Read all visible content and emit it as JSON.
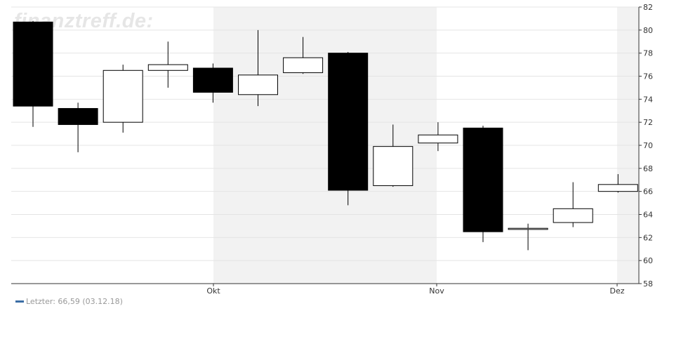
{
  "watermark": "finanztreff.de:",
  "legend": {
    "label": "Letzter: 66,59 (03.12.18)",
    "color": "#3b6ea5"
  },
  "chart_data": {
    "type": "candlestick",
    "title": "",
    "xlabel": "",
    "ylabel": "",
    "ylim": [
      58,
      82
    ],
    "y_ticks": [
      58,
      60,
      62,
      64,
      66,
      68,
      70,
      72,
      74,
      76,
      78,
      80,
      82
    ],
    "x_labels": [
      "Okt",
      "Nov",
      "Dez"
    ],
    "grid": true,
    "shaded_months": [
      "Okt",
      "Dez"
    ],
    "up_color": "#ffffff",
    "down_color": "#000000",
    "shade_color": "#f2f2f2",
    "candles": [
      {
        "open": 80.7,
        "high": 80.8,
        "low": 71.6,
        "close": 73.4
      },
      {
        "open": 73.2,
        "high": 73.7,
        "low": 69.4,
        "close": 71.8
      },
      {
        "open": 72.0,
        "high": 77.0,
        "low": 71.1,
        "close": 76.5
      },
      {
        "open": 76.5,
        "high": 79.0,
        "low": 75.0,
        "close": 77.0
      },
      {
        "open": 76.7,
        "high": 77.1,
        "low": 73.7,
        "close": 74.6
      },
      {
        "open": 74.4,
        "high": 80.0,
        "low": 73.4,
        "close": 76.1
      },
      {
        "open": 76.3,
        "high": 79.4,
        "low": 76.2,
        "close": 77.6
      },
      {
        "open": 78.0,
        "high": 78.1,
        "low": 64.8,
        "close": 66.1
      },
      {
        "open": 66.5,
        "high": 71.8,
        "low": 66.4,
        "close": 69.9
      },
      {
        "open": 70.2,
        "high": 72.0,
        "low": 69.5,
        "close": 70.9
      },
      {
        "open": 71.5,
        "high": 71.7,
        "low": 61.6,
        "close": 62.5
      },
      {
        "open": 62.7,
        "high": 63.2,
        "low": 60.9,
        "close": 62.8
      },
      {
        "open": 63.3,
        "high": 66.8,
        "low": 62.9,
        "close": 64.5
      },
      {
        "open": 66.0,
        "high": 67.5,
        "low": 65.9,
        "close": 66.6
      }
    ]
  }
}
